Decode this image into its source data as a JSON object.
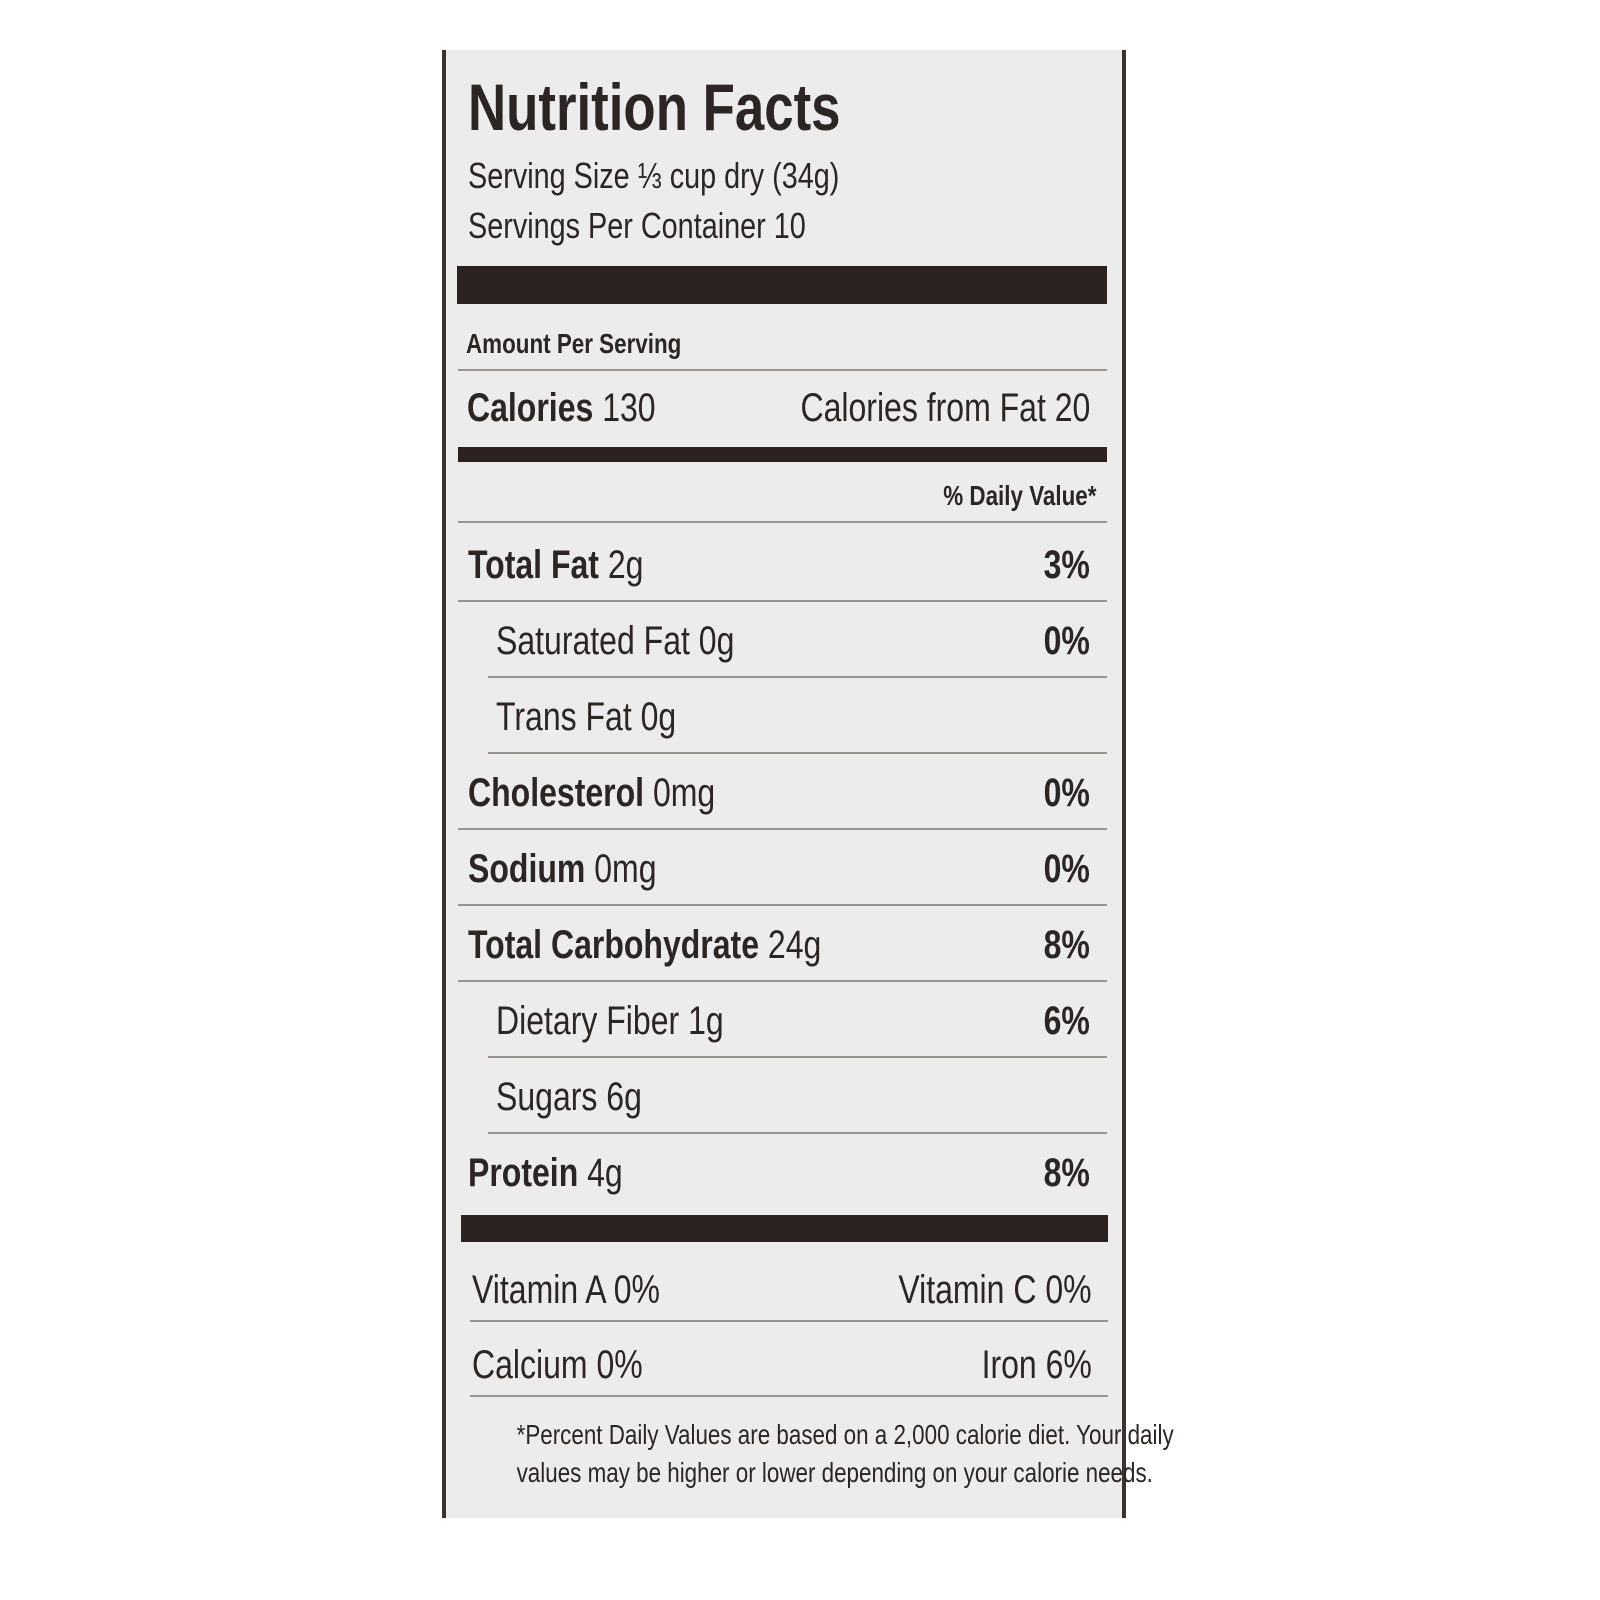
{
  "title": "Nutrition Facts",
  "serving_size": "Serving Size ⅓ cup dry (34g)",
  "servings_per_container": "Servings Per Container 10",
  "amount_per_serving": "Amount Per Serving",
  "calories": {
    "label": "Calories",
    "value": "130",
    "from_fat": "Calories from Fat 20"
  },
  "daily_value_header": "% Daily Value*",
  "nutrients": [
    {
      "name": "Total Fat",
      "amount": "2g",
      "dv": "3%",
      "sub_items": [
        {
          "name": "Saturated Fat",
          "amount": "0g",
          "dv": "0%"
        },
        {
          "name": "Trans Fat",
          "amount": "0g"
        }
      ]
    },
    {
      "name": "Cholesterol",
      "amount": "0mg",
      "dv": "0%"
    },
    {
      "name": "Sodium",
      "amount": "0mg",
      "dv": "0%"
    },
    {
      "name": "Total Carbohydrate",
      "amount": "24g",
      "dv": "8%",
      "sub_items": [
        {
          "name": "Dietary Fiber",
          "amount": "1g",
          "dv": "6%"
        },
        {
          "name": "Sugars",
          "amount": "6g"
        }
      ]
    },
    {
      "name": "Protein",
      "amount": "4g",
      "dv": "8%"
    }
  ],
  "vitamins": [
    [
      {
        "name": "Vitamin A",
        "value": "0%"
      },
      {
        "name": "Vitamin C",
        "value": "0%"
      }
    ],
    [
      {
        "name": "Calcium",
        "value": "0%"
      },
      {
        "name": "Iron",
        "value": "6%"
      }
    ]
  ],
  "footnote": [
    "*Percent Daily Values are based on a 2,000 calorie diet. Your daily",
    "values may be higher or lower depending on your calorie needs."
  ]
}
